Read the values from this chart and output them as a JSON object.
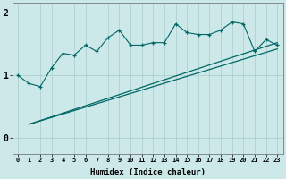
{
  "xlabel": "Humidex (Indice chaleur)",
  "bg_color": "#cce8e8",
  "line_color": "#006666",
  "grid_color": "#aacccc",
  "x_ticks": [
    0,
    1,
    2,
    3,
    4,
    5,
    6,
    7,
    8,
    9,
    10,
    11,
    12,
    13,
    14,
    15,
    16,
    17,
    18,
    19,
    20,
    21,
    22,
    23
  ],
  "ylim": [
    -0.25,
    2.15
  ],
  "xlim": [
    -0.5,
    23.5
  ],
  "series1_x": [
    0,
    1,
    2,
    3,
    4,
    5,
    6,
    7,
    8,
    9,
    10,
    11,
    12,
    13,
    14,
    15,
    16,
    17,
    18,
    19,
    20,
    21,
    22,
    23
  ],
  "series1_y": [
    1.0,
    0.87,
    0.82,
    1.12,
    1.35,
    1.32,
    1.48,
    1.38,
    1.6,
    1.72,
    1.48,
    1.48,
    1.52,
    1.52,
    1.82,
    1.68,
    1.65,
    1.65,
    1.72,
    1.85,
    1.82,
    1.38,
    1.57,
    1.48
  ],
  "series2_x": [
    1,
    23
  ],
  "series2_y": [
    0.22,
    1.52
  ],
  "series3_x": [
    1,
    23
  ],
  "series3_y": [
    0.22,
    1.42
  ],
  "yticks": [
    0,
    1,
    2
  ],
  "ytick_labels": [
    "0",
    "1",
    "2"
  ]
}
